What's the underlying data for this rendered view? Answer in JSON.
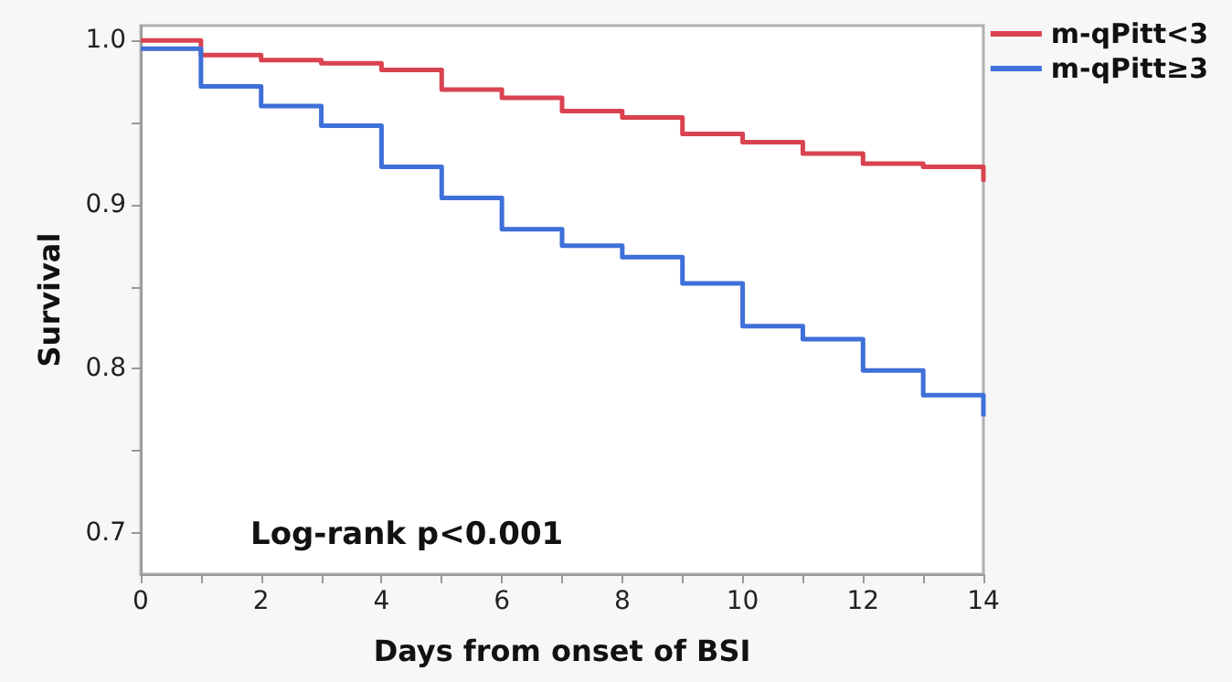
{
  "chart_data": {
    "type": "step",
    "xlabel": "Days from onset of BSI",
    "ylabel": "Survival",
    "x": [
      0,
      1,
      2,
      3,
      4,
      5,
      6,
      7,
      8,
      9,
      10,
      11,
      12,
      13,
      14
    ],
    "series": [
      {
        "name": "m-qPitt<3",
        "color": "#d9434f",
        "values": [
          1.0,
          0.991,
          0.988,
          0.986,
          0.982,
          0.97,
          0.965,
          0.957,
          0.953,
          0.943,
          0.938,
          0.931,
          0.925,
          0.923,
          0.914
        ]
      },
      {
        "name": "m-qPitt≥3",
        "color": "#3f6fd8",
        "values": [
          0.995,
          0.972,
          0.96,
          0.948,
          0.923,
          0.904,
          0.885,
          0.875,
          0.868,
          0.852,
          0.826,
          0.818,
          0.799,
          0.784,
          0.771
        ]
      }
    ],
    "xlim": [
      0,
      14
    ],
    "xticks": [
      0,
      {
        "value": 1,
        "label": null
      },
      2,
      {
        "value": 3,
        "label": null
      },
      4,
      {
        "value": 5,
        "label": null
      },
      6,
      {
        "value": 7,
        "label": null
      },
      8,
      {
        "value": 9,
        "label": null
      },
      10,
      {
        "value": 11,
        "label": null
      },
      12,
      {
        "value": 13,
        "label": null
      },
      14
    ],
    "ylim": [
      0.675,
      1.009
    ],
    "yticks": [
      {
        "value": 0.7,
        "label": "0.7"
      },
      {
        "value": 0.75,
        "label": null
      },
      {
        "value": 0.8,
        "label": "0.8"
      },
      {
        "value": 0.85,
        "label": null
      },
      {
        "value": 0.9,
        "label": "0.9"
      },
      {
        "value": 0.95,
        "label": null
      },
      {
        "value": 1.0,
        "label": "1.0"
      }
    ],
    "annotations": [
      "Log-rank p<0.001"
    ],
    "grid": false,
    "legend": "top right",
    "marker": "none",
    "line_style": "solid"
  }
}
